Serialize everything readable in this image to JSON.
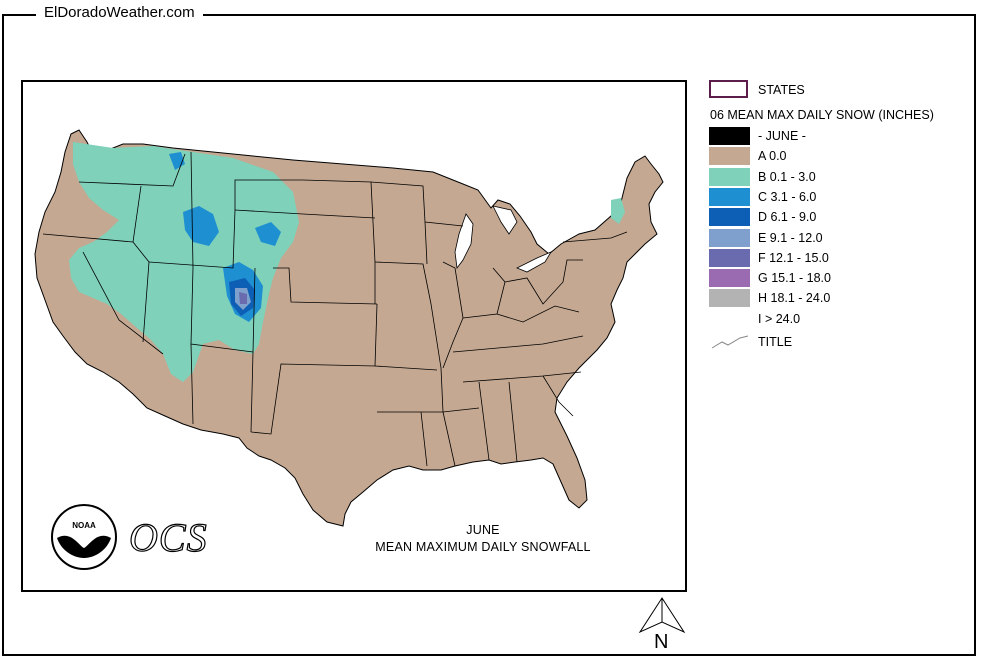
{
  "site_title": "ElDoradoWeather.com",
  "map": {
    "caption_line1": "JUNE",
    "caption_line2": "MEAN MAXIMUM DAILY SNOWFALL",
    "ocs_label": "OCS",
    "noaa_label": "NOAA",
    "land_color": "#c4a892",
    "state_border_color": "#000000"
  },
  "legend": {
    "states_label": "STATES",
    "heading": "06 MEAN MAX DAILY SNOW (INCHES)",
    "items": [
      {
        "label": "- JUNE -",
        "color": "#000000"
      },
      {
        "label": "A 0.0",
        "color": "#c4a892"
      },
      {
        "label": "B 0.1 - 3.0",
        "color": "#7fd1b9"
      },
      {
        "label": "C 3.1 - 6.0",
        "color": "#1e8fd0"
      },
      {
        "label": "D 6.1 - 9.0",
        "color": "#0c5fb5"
      },
      {
        "label": "E 9.1 - 12.0",
        "color": "#7f9fcc"
      },
      {
        "label": "F 12.1 - 15.0",
        "color": "#6a6aaf"
      },
      {
        "label": "G 15.1 - 18.0",
        "color": "#9a6bb0"
      },
      {
        "label": "H 18.1 - 24.0",
        "color": "#b3b3b3"
      },
      {
        "label": "I > 24.0",
        "color": "#ffffff"
      }
    ],
    "title_label": "TITLE"
  },
  "north_label": "N"
}
